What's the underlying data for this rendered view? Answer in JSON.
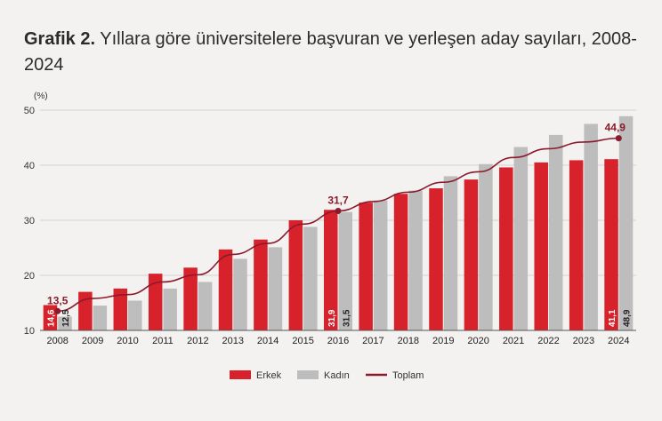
{
  "title": {
    "label": "Grafik 2.",
    "text": "Yıllara göre üniversitelere başvuran ve yerleşen aday sayıları, 2008-2024"
  },
  "chart_data": {
    "type": "bar",
    "title": "Grafik 2. Yıllara göre üniversitelere başvuran ve yerleşen aday sayıları, 2008-2024",
    "ylabel": "(%)",
    "xlabel": "",
    "ylim": [
      10,
      50
    ],
    "yticks": [
      "10",
      "20",
      "30",
      "40",
      "50"
    ],
    "grid": true,
    "legend": "bottom",
    "categories": [
      "2008",
      "2009",
      "2010",
      "2011",
      "2012",
      "2013",
      "2014",
      "2015",
      "2016",
      "2017",
      "2018",
      "2019",
      "2020",
      "2021",
      "2022",
      "2023",
      "2024"
    ],
    "series": [
      {
        "name": "Erkek",
        "kind": "bar",
        "color": "#d7212b",
        "values": [
          14.6,
          17.0,
          17.6,
          20.3,
          21.4,
          24.7,
          26.5,
          30.0,
          31.9,
          33.2,
          34.8,
          35.8,
          37.4,
          39.6,
          40.5,
          40.9,
          41.1
        ]
      },
      {
        "name": "Kadın",
        "kind": "bar",
        "color": "#bdbdbd",
        "values": [
          12.5,
          14.5,
          15.4,
          17.6,
          18.8,
          23.0,
          25.1,
          28.8,
          31.5,
          33.6,
          35.4,
          38.0,
          40.2,
          43.3,
          45.5,
          47.5,
          48.9
        ]
      },
      {
        "name": "Toplam",
        "kind": "line",
        "color": "#8c1a2c",
        "values": [
          13.5,
          15.8,
          16.5,
          18.8,
          20.1,
          23.8,
          25.8,
          29.3,
          31.7,
          33.4,
          35.1,
          36.9,
          38.8,
          41.4,
          43.0,
          44.2,
          44.9
        ]
      }
    ],
    "bar_labels": [
      {
        "series": "Erkek",
        "category": "2008",
        "text": "14,6"
      },
      {
        "series": "Kadın",
        "category": "2008",
        "text": "12,5"
      },
      {
        "series": "Erkek",
        "category": "2016",
        "text": "31,9"
      },
      {
        "series": "Kadın",
        "category": "2016",
        "text": "31,5"
      },
      {
        "series": "Erkek",
        "category": "2024",
        "text": "41,1"
      },
      {
        "series": "Kadın",
        "category": "2024",
        "text": "48,9"
      }
    ],
    "point_labels": [
      {
        "category": "2008",
        "text": "13,5"
      },
      {
        "category": "2016",
        "text": "31,7"
      },
      {
        "category": "2024",
        "text": "44,9"
      }
    ]
  }
}
